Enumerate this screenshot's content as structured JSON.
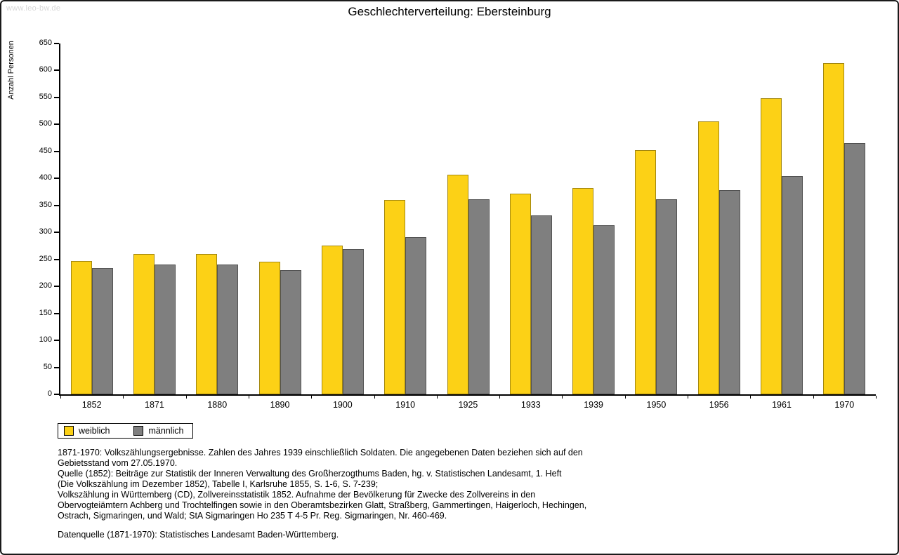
{
  "page": {
    "watermark": "www.leo-bw.de"
  },
  "chart_data": {
    "type": "bar",
    "title": "Geschlechterverteilung: Ebersteinburg",
    "xlabel": "",
    "ylabel": "Anzahl Personen",
    "ylim": [
      0,
      650
    ],
    "ytick_step": 50,
    "grid": false,
    "legend_position": "bottom-left",
    "categories": [
      "1852",
      "1871",
      "1880",
      "1890",
      "1900",
      "1910",
      "1925",
      "1933",
      "1939",
      "1950",
      "1956",
      "1961",
      "1970"
    ],
    "series": [
      {
        "name": "weiblich",
        "color": "#fcd116",
        "values": [
          247,
          260,
          260,
          246,
          275,
          360,
          407,
          372,
          382,
          452,
          506,
          548,
          614
        ]
      },
      {
        "name": "männlich",
        "color": "#7f7f7f",
        "values": [
          234,
          240,
          240,
          230,
          269,
          291,
          362,
          332,
          313,
          362,
          378,
          404,
          465
        ]
      }
    ]
  },
  "notes": {
    "lines": [
      "1871-1970: Volkszählungsergebnisse. Zahlen des Jahres 1939 einschließlich Soldaten. Die angegebenen Daten beziehen sich auf den",
      "Gebietsstand vom 27.05.1970.",
      "Quelle (1852): Beiträge zur Statistik der Inneren Verwaltung des Großherzogthums Baden, hg. v. Statistischen Landesamt, 1. Heft",
      "(Die Volkszählung im Dezember 1852), Tabelle I, Karlsruhe 1855, S. 1-6, S. 7-239;",
      "Volkszählung in Württemberg (CD), Zollvereinsstatistik 1852. Aufnahme der Bevölkerung für Zwecke des Zollvereins in den",
      "Obervogteiämtern Achberg und Trochtelfingen sowie in den Oberamtsbezirken Glatt, Straßberg, Gammertingen, Haigerloch, Hechingen,",
      "Ostrach, Sigmaringen, und Wald; StA Sigmaringen Ho 235 T 4-5 Pr. Reg. Sigmaringen, Nr. 460-469."
    ],
    "source": "Datenquelle (1871-1970): Statistisches Landesamt Baden-Württemberg."
  }
}
